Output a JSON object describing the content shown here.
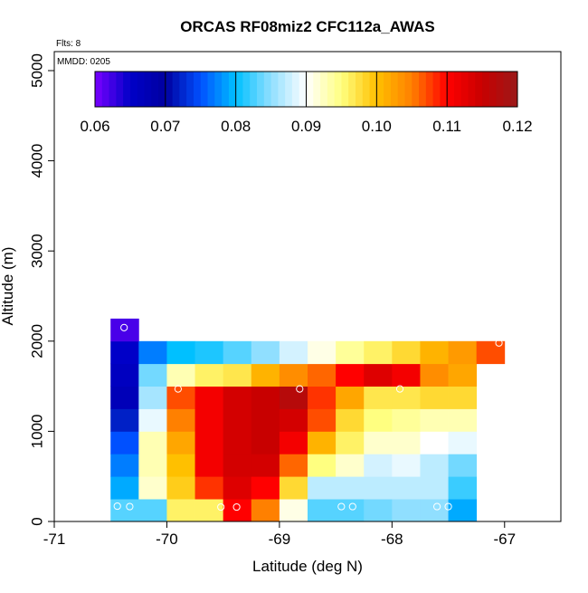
{
  "chart_data": {
    "type": "heatmap",
    "title": "ORCAS RF08miz2 CFC112a_AWAS",
    "annotations": {
      "flights": "Flts: 8",
      "date": "MMDD: 0205"
    },
    "xlabel": "Latitude (deg N)",
    "ylabel": "Altitude (m)",
    "xlim": [
      -71,
      -66.5
    ],
    "ylim": [
      0,
      5200
    ],
    "xticks": [
      -71,
      -70,
      -69,
      -68,
      -67
    ],
    "xtick_labels": [
      "-71",
      "-70",
      "-69",
      "-68",
      "-67"
    ],
    "yticks": [
      0,
      1000,
      2000,
      3000,
      4000,
      5000
    ],
    "ytick_labels": [
      "0",
      "1000",
      "2000",
      "3000",
      "4000",
      "5000"
    ],
    "colorbar": {
      "min": 0.06,
      "max": 0.12,
      "ticks": [
        0.06,
        0.07,
        0.08,
        0.09,
        0.1,
        0.11,
        0.12
      ],
      "tick_labels": [
        "0.06",
        "0.07",
        "0.08",
        "0.09",
        "0.10",
        "0.11",
        "0.12"
      ],
      "stops": [
        "#7a00ff",
        "#0000c8",
        "#0000a0",
        "#0050ff",
        "#00c0ff",
        "#90dfff",
        "#ffffff",
        "#ffff80",
        "#ffc000",
        "#ff8000",
        "#ff0000",
        "#c80000",
        "#9a1a1a"
      ]
    },
    "cell_width": 0.25,
    "cell_height": 250,
    "x_centers": [
      -70.375,
      -70.125,
      -69.875,
      -69.625,
      -69.375,
      -69.125,
      -68.875,
      -68.625,
      -68.375,
      -68.125,
      -67.875,
      -67.625,
      -67.375,
      -67.125
    ],
    "rows": [
      {
        "y_center": 125,
        "values": [
          0.083,
          0.083,
          0.096,
          0.096,
          0.11,
          0.105,
          0.091,
          0.083,
          0.083,
          0.084,
          0.085,
          0.085,
          0.079,
          null
        ]
      },
      {
        "y_center": 375,
        "values": [
          0.079,
          0.092,
          0.099,
          0.108,
          0.113,
          0.11,
          0.098,
          0.087,
          0.087,
          0.087,
          0.087,
          0.087,
          0.082,
          null
        ]
      },
      {
        "y_center": 625,
        "values": [
          0.077,
          0.093,
          0.1,
          0.111,
          0.114,
          0.114,
          0.106,
          0.095,
          0.092,
          0.088,
          0.089,
          0.087,
          0.084,
          null
        ]
      },
      {
        "y_center": 875,
        "values": [
          0.075,
          0.093,
          0.102,
          0.111,
          0.114,
          0.115,
          0.111,
          0.101,
          0.096,
          0.092,
          0.092,
          0.09,
          0.089,
          null
        ]
      },
      {
        "y_center": 1125,
        "values": [
          0.072,
          0.089,
          0.105,
          0.111,
          0.114,
          0.115,
          0.114,
          0.107,
          0.098,
          0.095,
          0.094,
          0.093,
          0.093,
          null
        ]
      },
      {
        "y_center": 1375,
        "values": [
          0.067,
          0.086,
          0.107,
          0.111,
          0.114,
          0.115,
          0.117,
          0.108,
          0.102,
          0.097,
          0.097,
          0.098,
          0.098,
          null
        ]
      },
      {
        "y_center": 1625,
        "values": [
          0.066,
          0.084,
          0.093,
          0.096,
          0.097,
          0.101,
          0.104,
          0.106,
          0.11,
          0.113,
          0.111,
          0.104,
          0.102,
          null
        ]
      },
      {
        "y_center": 1875,
        "values": [
          0.065,
          0.077,
          0.08,
          0.081,
          0.083,
          0.085,
          0.088,
          0.091,
          0.094,
          0.096,
          0.098,
          0.101,
          0.103,
          0.107
        ]
      },
      {
        "y_center": 2125,
        "values": [
          0.062,
          null,
          null,
          null,
          null,
          null,
          null,
          null,
          null,
          null,
          null,
          null,
          null,
          null
        ]
      }
    ],
    "sample_points": [
      {
        "lat": -70.44,
        "alt": 170
      },
      {
        "lat": -70.33,
        "alt": 165
      },
      {
        "lat": -69.52,
        "alt": 160
      },
      {
        "lat": -69.38,
        "alt": 160
      },
      {
        "lat": -68.45,
        "alt": 165
      },
      {
        "lat": -68.35,
        "alt": 165
      },
      {
        "lat": -67.6,
        "alt": 165
      },
      {
        "lat": -67.5,
        "alt": 165
      },
      {
        "lat": -70.38,
        "alt": 2150
      },
      {
        "lat": -69.9,
        "alt": 1470
      },
      {
        "lat": -68.82,
        "alt": 1470
      },
      {
        "lat": -67.93,
        "alt": 1470
      },
      {
        "lat": -67.05,
        "alt": 1980
      }
    ]
  }
}
